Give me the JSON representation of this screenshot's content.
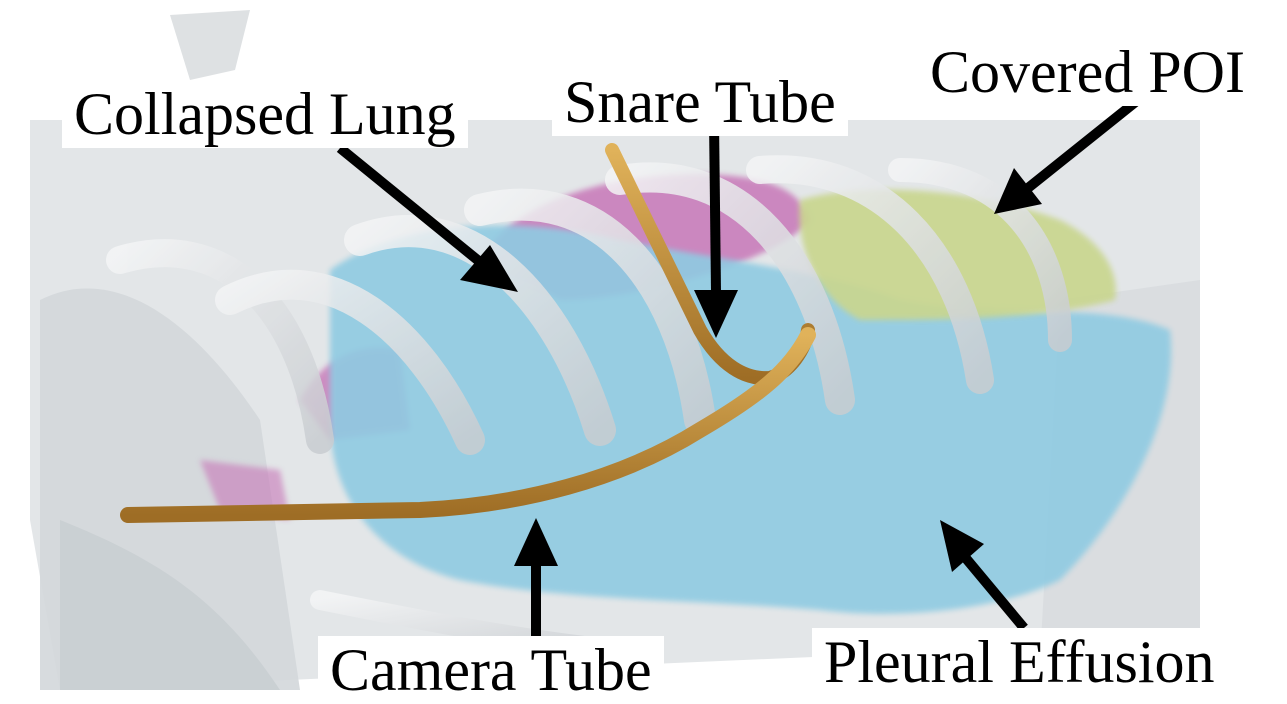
{
  "labels": {
    "collapsed_lung": "Collapsed Lung",
    "snare_tube": "Snare Tube",
    "covered_poi": "Covered POI",
    "camera_tube": "Camera Tube",
    "pleural_effusion": "Pleural Effusion"
  },
  "colors": {
    "tissue": "#d9dde0",
    "lung": "#c777b8",
    "effusion": "#8fcbe2",
    "poi": "#c9d68f",
    "tube": "#c8963f",
    "arrow": "#000000",
    "label_bg": "#ffffff"
  }
}
